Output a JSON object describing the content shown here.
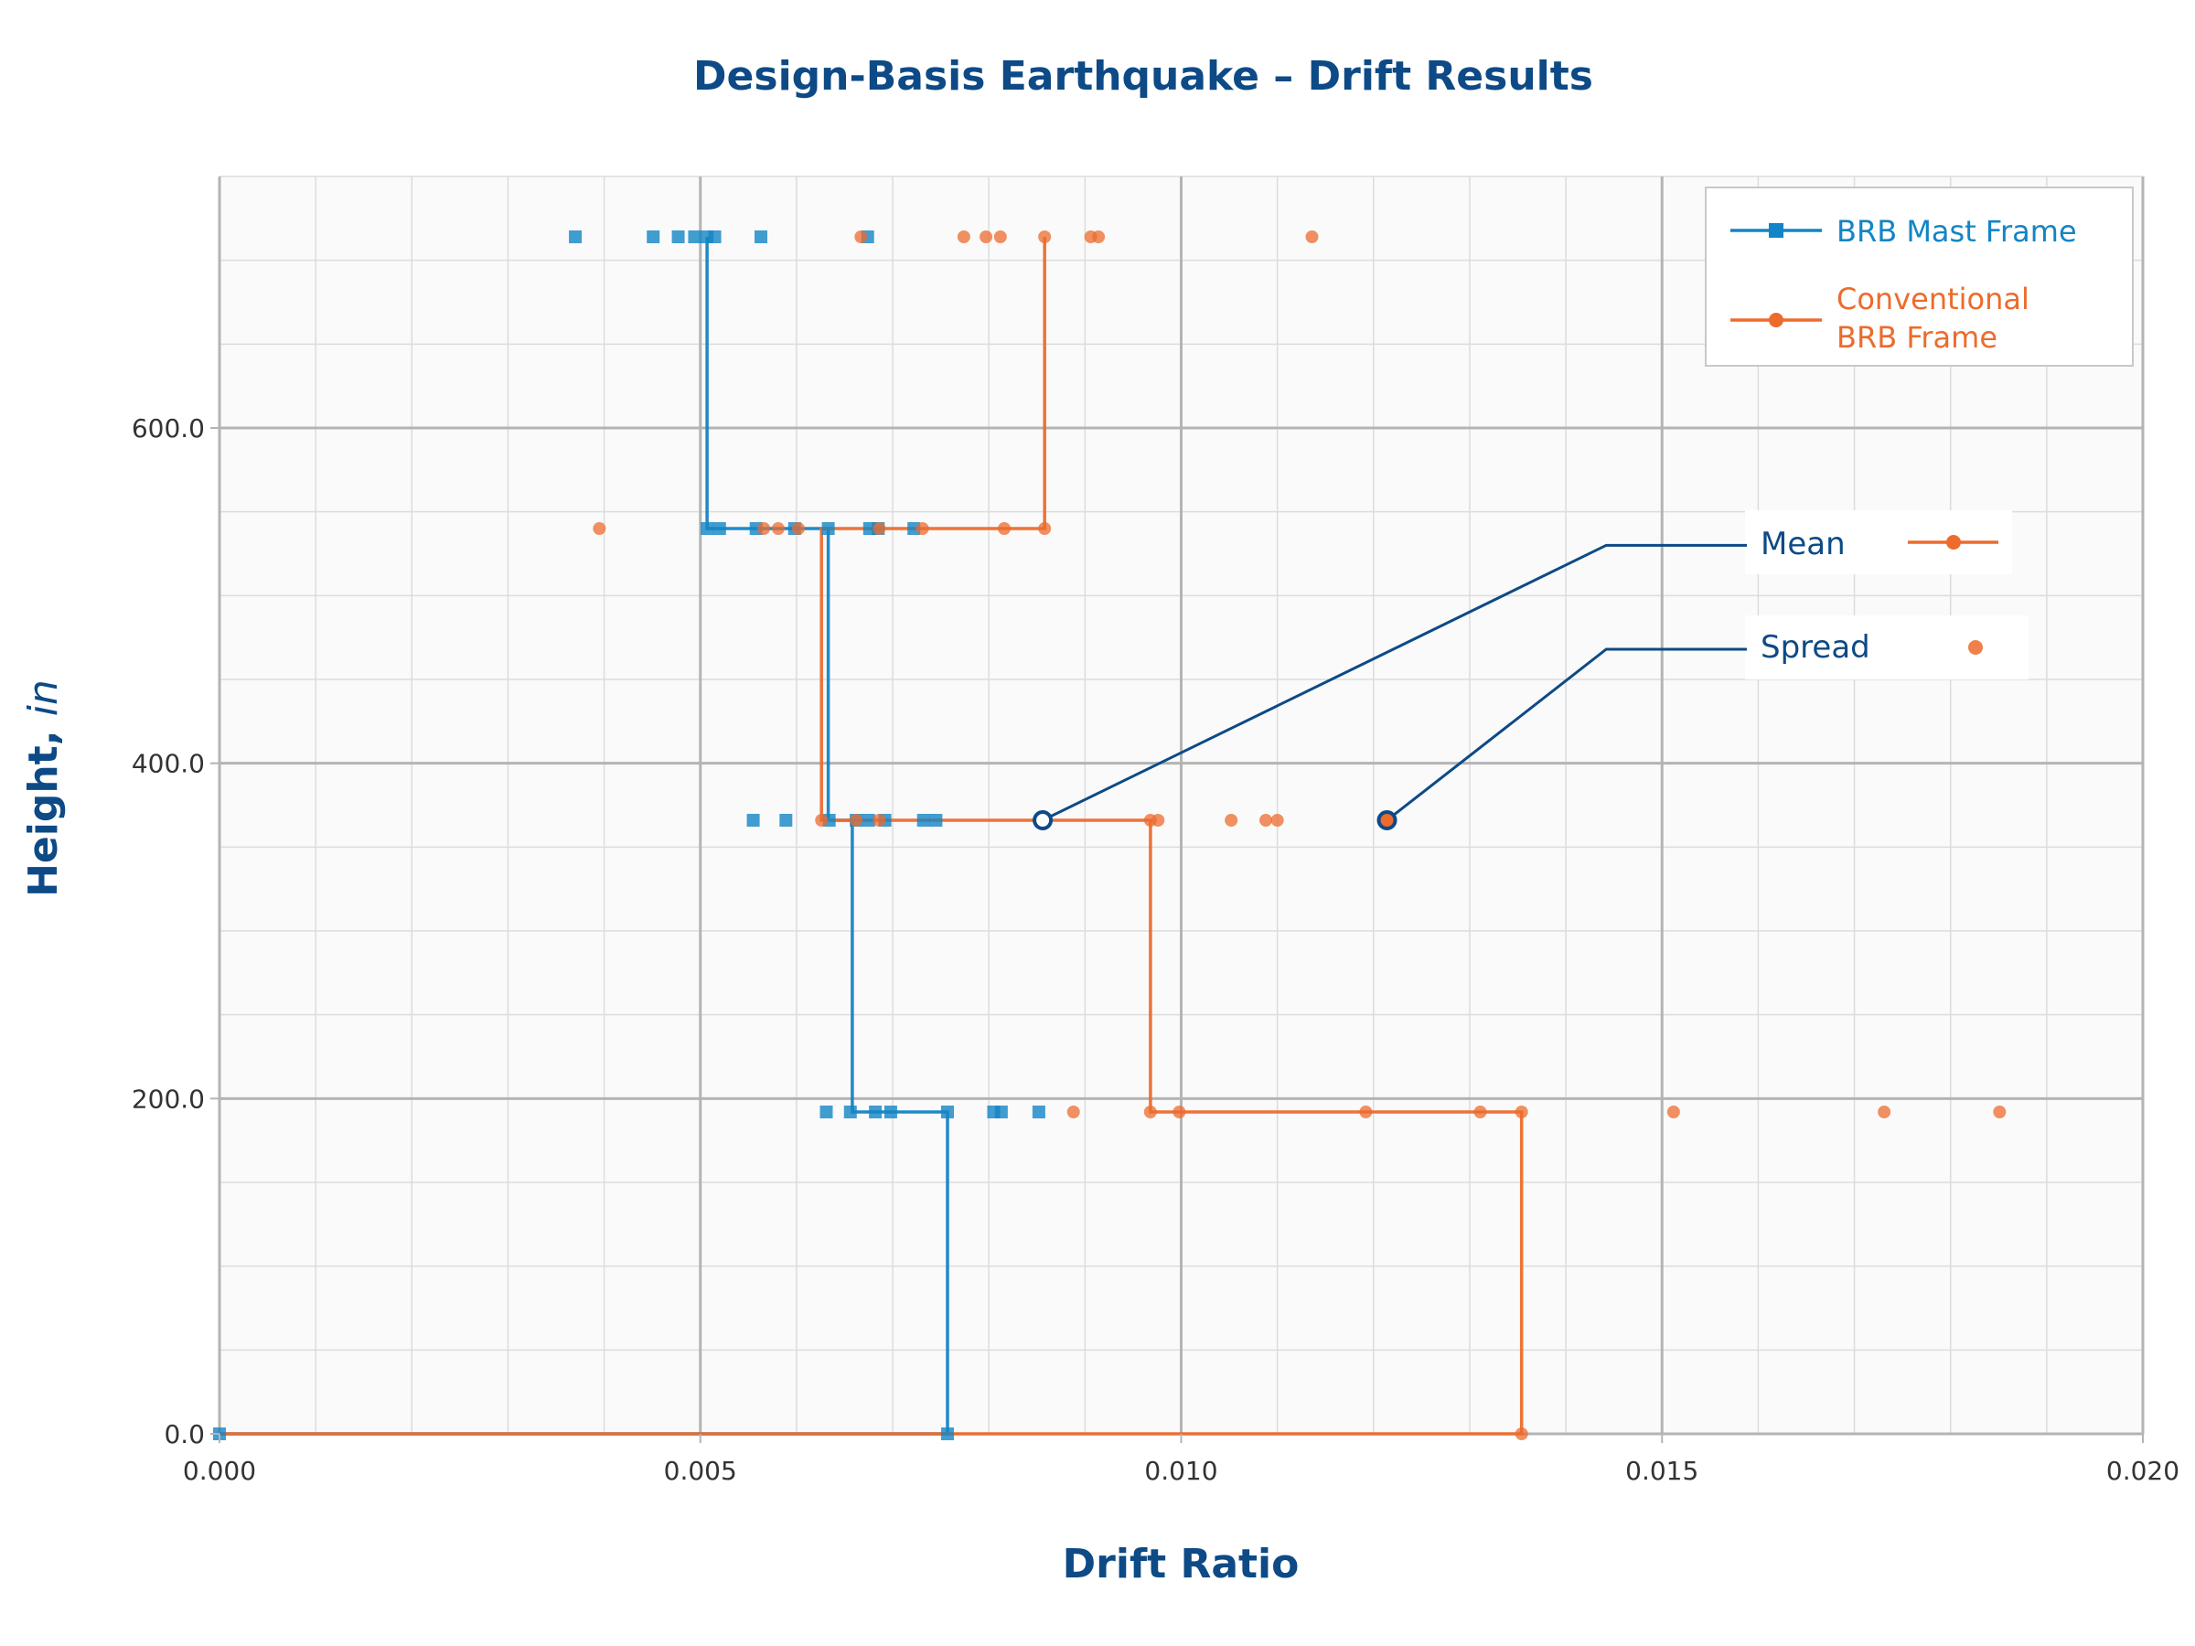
{
  "colors": {
    "blue": "#1384c6",
    "orange": "#ec6b2d",
    "navy": "#0d4a86",
    "grid_major": "#b4b4b4",
    "grid_minor": "#dcdcdc",
    "plot_bg": "#fafafa"
  },
  "chart_data": {
    "type": "line",
    "title": "Design-Basis Earthquake – Drift Results",
    "xlabel": "Drift Ratio",
    "ylabel": "Height,",
    "ylabel_unit": "in",
    "xlim": [
      0,
      0.02
    ],
    "ylim": [
      0,
      750
    ],
    "x_ticks": [
      0,
      0.005,
      0.01,
      0.015,
      0.02
    ],
    "x_tick_labels": [
      "0.000",
      "0.005",
      "0.010",
      "0.015",
      "0.020"
    ],
    "y_ticks": [
      0,
      200,
      400,
      600
    ],
    "y_tick_labels": [
      "0.0",
      "200.0",
      "400.0",
      "600.0"
    ],
    "grid": true,
    "legend_position": "top-right",
    "series": [
      {
        "name": "BRB Mast Frame",
        "color_key": "blue",
        "marker": "square",
        "mean_step": [
          {
            "x": 0.0,
            "y": 0
          },
          {
            "x": 0.00757,
            "y": 0
          },
          {
            "x": 0.00757,
            "y": 192
          },
          {
            "x": 0.00658,
            "y": 192
          },
          {
            "x": 0.00658,
            "y": 366
          },
          {
            "x": 0.00633,
            "y": 366
          },
          {
            "x": 0.00633,
            "y": 540
          },
          {
            "x": 0.00507,
            "y": 540
          },
          {
            "x": 0.00507,
            "y": 714
          }
        ],
        "scatter": [
          {
            "y": 0,
            "x": [
              0.0,
              0.00757
            ]
          },
          {
            "y": 192,
            "x": [
              0.00631,
              0.00656,
              0.00682,
              0.00698,
              0.00757,
              0.00805,
              0.00813,
              0.00852
            ]
          },
          {
            "y": 366,
            "x": [
              0.00555,
              0.00589,
              0.00634,
              0.00662,
              0.00675,
              0.00692,
              0.00732,
              0.00745
            ]
          },
          {
            "y": 540,
            "x": [
              0.00507,
              0.0052,
              0.00558,
              0.00598,
              0.00633,
              0.00676,
              0.00685,
              0.00722
            ]
          },
          {
            "y": 714,
            "x": [
              0.0037,
              0.00451,
              0.00477,
              0.00494,
              0.00507,
              0.00515,
              0.00563,
              0.00674
            ]
          }
        ]
      },
      {
        "name": "Conventional BRB Frame",
        "legend_lines": [
          "Conventional",
          "BRB Frame"
        ],
        "color_key": "orange",
        "marker": "circle",
        "mean_step": [
          {
            "x": 0.0,
            "y": 0
          },
          {
            "x": 0.01354,
            "y": 0
          },
          {
            "x": 0.01354,
            "y": 192
          },
          {
            "x": 0.00968,
            "y": 192
          },
          {
            "x": 0.00968,
            "y": 366
          },
          {
            "x": 0.00626,
            "y": 366
          },
          {
            "x": 0.00626,
            "y": 540
          },
          {
            "x": 0.00858,
            "y": 540
          },
          {
            "x": 0.00858,
            "y": 714
          }
        ],
        "scatter": [
          {
            "y": 0,
            "x": [
              0.01354
            ]
          },
          {
            "y": 192,
            "x": [
              0.00888,
              0.00968,
              0.00998,
              0.01192,
              0.01311,
              0.01354,
              0.01512,
              0.01731,
              0.01851
            ]
          },
          {
            "y": 366,
            "x": [
              0.00626,
              0.00662,
              0.00686,
              0.00968,
              0.00976,
              0.01052,
              0.01088,
              0.011
            ]
          },
          {
            "y": 540,
            "x": [
              0.00395,
              0.00566,
              0.00581,
              0.00602,
              0.00686,
              0.00731,
              0.00816,
              0.00858
            ]
          },
          {
            "y": 714,
            "x": [
              0.00667,
              0.00774,
              0.00797,
              0.00812,
              0.00858,
              0.00906,
              0.00914,
              0.01136
            ]
          }
        ]
      }
    ],
    "annotations": [
      {
        "label": "Mean",
        "target_x": 0.00856,
        "target_y": 366,
        "elbow_x": 0.01442,
        "label_y": 530,
        "key": "line"
      },
      {
        "label": "Spread",
        "target_x": 0.01214,
        "target_y": 366,
        "elbow_x": 0.01442,
        "label_y": 468,
        "key": "dot"
      }
    ]
  }
}
